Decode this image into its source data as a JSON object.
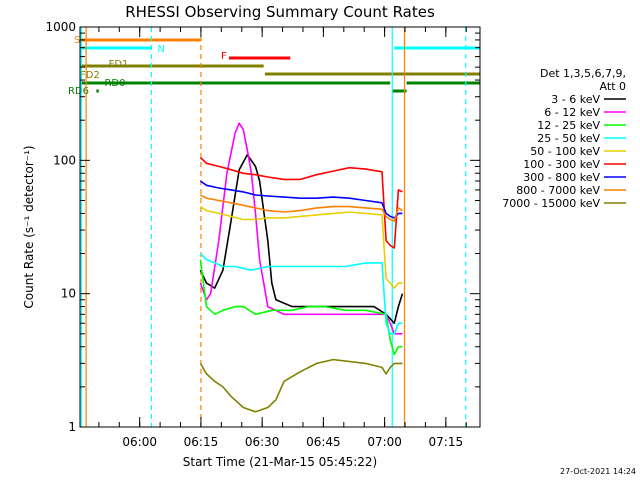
{
  "chart_data": {
    "type": "line",
    "title": "RHESSI Observing Summary Count Rates",
    "xlabel": "Start Time (21-Mar-15 05:45:22)",
    "ylabel": "Count Rate (s⁻¹ detector⁻¹)",
    "y_scale": "log",
    "ylim": [
      1,
      1000
    ],
    "xlim_minutes": [
      0,
      98
    ],
    "x_ticks": [
      {
        "label": "06:00",
        "t": 14.63
      },
      {
        "label": "06:15",
        "t": 29.63
      },
      {
        "label": "06:30",
        "t": 44.63
      },
      {
        "label": "06:45",
        "t": 59.63
      },
      {
        "label": "07:00",
        "t": 74.63
      },
      {
        "label": "07:15",
        "t": 89.63
      }
    ],
    "y_ticks": [
      {
        "label": "1",
        "v": 1
      },
      {
        "label": "10",
        "v": 10
      },
      {
        "label": "100",
        "v": 100
      },
      {
        "label": "1000",
        "v": 1000
      }
    ],
    "legend_header": [
      "Det 1,3,5,6,7,9,",
      "Att 0"
    ],
    "series": [
      {
        "name": "3 - 6 keV",
        "color": "#000000",
        "points": [
          [
            29.5,
            15
          ],
          [
            31,
            12
          ],
          [
            33,
            11
          ],
          [
            35,
            15
          ],
          [
            37,
            35
          ],
          [
            39,
            85
          ],
          [
            41,
            110
          ],
          [
            43,
            90
          ],
          [
            44,
            70
          ],
          [
            46,
            25
          ],
          [
            47,
            12
          ],
          [
            48,
            9
          ],
          [
            52,
            8
          ],
          [
            56,
            8
          ],
          [
            60,
            8
          ],
          [
            64,
            8
          ],
          [
            68,
            8
          ],
          [
            72,
            8
          ],
          [
            75,
            7
          ],
          [
            77,
            6
          ],
          [
            78,
            8
          ],
          [
            79,
            10
          ]
        ]
      },
      {
        "name": "6 - 12 keV",
        "color": "#ff00ff",
        "points": [
          [
            29.5,
            12
          ],
          [
            31,
            9
          ],
          [
            32,
            10
          ],
          [
            34,
            25
          ],
          [
            36,
            80
          ],
          [
            38,
            160
          ],
          [
            39,
            190
          ],
          [
            40,
            170
          ],
          [
            41,
            120
          ],
          [
            42,
            80
          ],
          [
            43,
            40
          ],
          [
            44,
            18
          ],
          [
            45,
            12
          ],
          [
            46,
            8
          ],
          [
            50,
            7
          ],
          [
            55,
            7
          ],
          [
            60,
            7
          ],
          [
            65,
            7
          ],
          [
            70,
            7
          ],
          [
            75,
            7
          ],
          [
            76,
            6
          ],
          [
            77,
            5
          ],
          [
            79,
            5
          ]
        ]
      },
      {
        "name": "12 - 25 keV",
        "color": "#00ff00",
        "points": [
          [
            29.5,
            18
          ],
          [
            31,
            8
          ],
          [
            33,
            7
          ],
          [
            35,
            7.5
          ],
          [
            38,
            8
          ],
          [
            40,
            8
          ],
          [
            43,
            7
          ],
          [
            47,
            7.5
          ],
          [
            52,
            7.5
          ],
          [
            56,
            8
          ],
          [
            60,
            8
          ],
          [
            65,
            7.5
          ],
          [
            70,
            7.5
          ],
          [
            75,
            7
          ],
          [
            76,
            4.5
          ],
          [
            77,
            3.5
          ],
          [
            78,
            4
          ],
          [
            79,
            4
          ]
        ]
      },
      {
        "name": "25 - 50 keV",
        "color": "#00ffff",
        "points": [
          [
            29.5,
            20
          ],
          [
            31,
            18
          ],
          [
            33,
            17
          ],
          [
            35,
            16
          ],
          [
            38,
            16
          ],
          [
            42,
            15
          ],
          [
            46,
            16
          ],
          [
            50,
            16
          ],
          [
            55,
            16
          ],
          [
            60,
            16
          ],
          [
            65,
            16
          ],
          [
            70,
            17
          ],
          [
            74,
            17
          ],
          [
            75,
            6
          ],
          [
            76,
            5
          ],
          [
            77,
            5
          ],
          [
            78,
            6
          ],
          [
            79,
            6
          ]
        ]
      },
      {
        "name": "50 - 100 keV",
        "color": "#e6d000",
        "points": [
          [
            29.5,
            45
          ],
          [
            31,
            42
          ],
          [
            34,
            40
          ],
          [
            37,
            38
          ],
          [
            40,
            36
          ],
          [
            43,
            36
          ],
          [
            46,
            37
          ],
          [
            50,
            37
          ],
          [
            54,
            38
          ],
          [
            58,
            39
          ],
          [
            62,
            40
          ],
          [
            66,
            41
          ],
          [
            70,
            40
          ],
          [
            74,
            39
          ],
          [
            75,
            13
          ],
          [
            76,
            12
          ],
          [
            77,
            11
          ],
          [
            78,
            12
          ],
          [
            79,
            12
          ]
        ]
      },
      {
        "name": "100 - 300 keV",
        "color": "#ff0000",
        "points": [
          [
            29.5,
            105
          ],
          [
            31,
            95
          ],
          [
            34,
            90
          ],
          [
            37,
            85
          ],
          [
            40,
            80
          ],
          [
            43,
            78
          ],
          [
            46,
            75
          ],
          [
            50,
            72
          ],
          [
            54,
            72
          ],
          [
            58,
            78
          ],
          [
            62,
            83
          ],
          [
            66,
            88
          ],
          [
            70,
            86
          ],
          [
            74,
            82
          ],
          [
            75,
            25
          ],
          [
            76,
            23
          ],
          [
            77,
            22
          ],
          [
            78,
            60
          ],
          [
            79,
            58
          ]
        ]
      },
      {
        "name": "300 - 800 keV",
        "color": "#0000ff",
        "points": [
          [
            29.5,
            70
          ],
          [
            31,
            65
          ],
          [
            34,
            62
          ],
          [
            37,
            60
          ],
          [
            40,
            58
          ],
          [
            43,
            55
          ],
          [
            46,
            54
          ],
          [
            50,
            53
          ],
          [
            54,
            52
          ],
          [
            58,
            52
          ],
          [
            62,
            53
          ],
          [
            66,
            52
          ],
          [
            70,
            50
          ],
          [
            74,
            48
          ],
          [
            75,
            40
          ],
          [
            76,
            38
          ],
          [
            77,
            37
          ],
          [
            78,
            40
          ],
          [
            79,
            40
          ]
        ]
      },
      {
        "name": "800 - 7000 keV",
        "color": "#ff8000",
        "points": [
          [
            29.5,
            55
          ],
          [
            31,
            52
          ],
          [
            34,
            50
          ],
          [
            37,
            48
          ],
          [
            40,
            46
          ],
          [
            43,
            44
          ],
          [
            46,
            42
          ],
          [
            50,
            41
          ],
          [
            54,
            42
          ],
          [
            58,
            44
          ],
          [
            62,
            45
          ],
          [
            66,
            45
          ],
          [
            70,
            44
          ],
          [
            74,
            43
          ],
          [
            75,
            38
          ],
          [
            76,
            36
          ],
          [
            77,
            35
          ],
          [
            78,
            44
          ],
          [
            79,
            42
          ]
        ]
      },
      {
        "name": "7000 - 15000 keV",
        "color": "#808000",
        "points": [
          [
            29.5,
            3
          ],
          [
            31,
            2.5
          ],
          [
            33,
            2.2
          ],
          [
            35,
            2
          ],
          [
            37,
            1.7
          ],
          [
            40,
            1.4
          ],
          [
            43,
            1.3
          ],
          [
            46,
            1.4
          ],
          [
            48,
            1.6
          ],
          [
            50,
            2.2
          ],
          [
            54,
            2.6
          ],
          [
            58,
            3
          ],
          [
            62,
            3.2
          ],
          [
            66,
            3.1
          ],
          [
            70,
            3.0
          ],
          [
            74,
            2.8
          ],
          [
            75,
            2.5
          ],
          [
            76,
            2.8
          ],
          [
            77,
            3
          ],
          [
            78,
            3
          ],
          [
            79,
            3
          ]
        ]
      }
    ],
    "flags": [
      {
        "label": "S",
        "color": "#ff8000",
        "start": 0,
        "end": 29.63
      },
      {
        "label": "N",
        "color": "#00ffff",
        "start": 0,
        "end": 17.5
      },
      {
        "label": "N",
        "color": "#00ffff",
        "start": 77,
        "end": 98
      },
      {
        "label": "F",
        "color": "#ff0000",
        "start": 36.5,
        "end": 51.5
      },
      {
        "label": "FD1",
        "color": "#808000",
        "start": 0,
        "end": 45
      },
      {
        "label": "FD2",
        "color": "#808000",
        "start": 45.3,
        "end": 98
      },
      {
        "label": "RD0",
        "color": "#008000",
        "start": 0,
        "end": 76
      },
      {
        "label": "RD0",
        "color": "#008000",
        "start": 80,
        "end": 98
      },
      {
        "label": "RD6",
        "color": "#008000",
        "start": 4,
        "end": 4.6
      },
      {
        "label": "RD6",
        "color": "#008000",
        "start": 76.5,
        "end": 80
      }
    ],
    "vertical_markers": [
      {
        "t": 1.5,
        "color": "#ff8000",
        "style": "solid"
      },
      {
        "t": 17.5,
        "color": "#00ffff",
        "style": "dashed"
      },
      {
        "t": 29.63,
        "color": "#ff8000",
        "style": "dashed"
      },
      {
        "t": 76.5,
        "color": "#00ffff",
        "style": "solid"
      },
      {
        "t": 79.5,
        "color": "#ff8000",
        "style": "solid"
      },
      {
        "t": 94.5,
        "color": "#00ffff",
        "style": "dashed"
      },
      {
        "t": 0.3,
        "color": "#00ffff",
        "style": "solid"
      }
    ],
    "grid": false,
    "legend": "right"
  },
  "footer": {
    "timestamp": "27-Oct-2021 14:24"
  }
}
